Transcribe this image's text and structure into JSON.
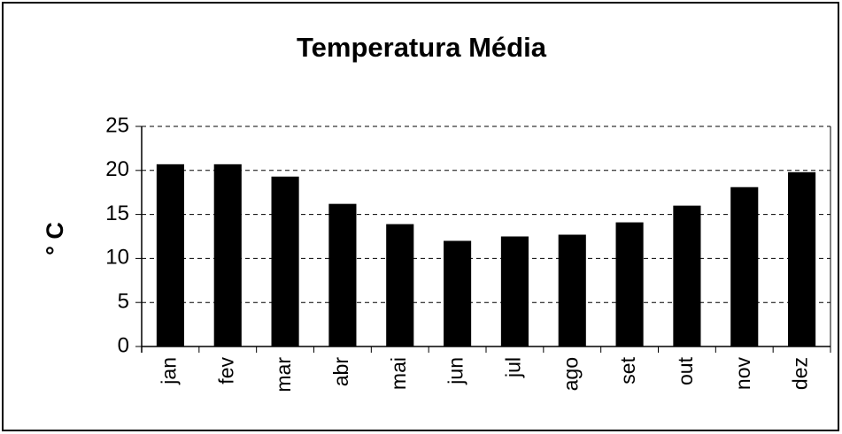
{
  "chart_data": {
    "type": "bar",
    "title": "Temperatura Média",
    "y_label": "° C",
    "categories": [
      "jan",
      "fev",
      "mar",
      "abr",
      "mai",
      "jun",
      "jul",
      "ago",
      "set",
      "out",
      "nov",
      "dez"
    ],
    "values": [
      20.7,
      20.7,
      19.3,
      16.2,
      13.9,
      12.0,
      12.5,
      12.7,
      14.1,
      16.0,
      18.1,
      19.8
    ],
    "color": "#000000",
    "ylim": [
      0,
      25
    ],
    "yticks": [
      0,
      5,
      10,
      15,
      20,
      25
    ],
    "grid": true
  }
}
